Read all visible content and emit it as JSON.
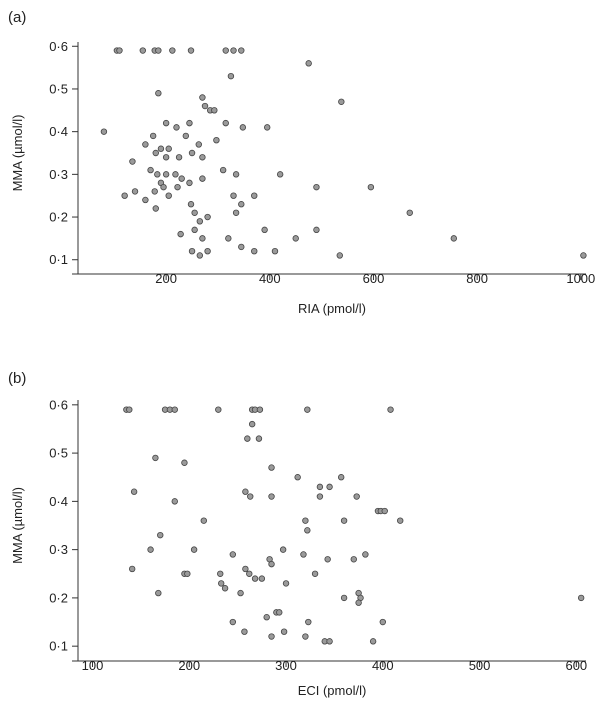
{
  "chart_data": [
    {
      "type": "scatter",
      "panel_label": "(a)",
      "xlabel": "RIA (pmol/l)",
      "ylabel": "MMA (µmol/l)",
      "xlim": [
        30,
        1010
      ],
      "ylim": [
        0.09,
        0.61
      ],
      "xticks": [
        200,
        400,
        600,
        800,
        1000
      ],
      "xtick_labels": [
        "200",
        "400",
        "600",
        "800",
        "1000"
      ],
      "yticks": [
        0.1,
        0.2,
        0.3,
        0.4,
        0.5,
        0.6
      ],
      "ytick_labels": [
        "0·1",
        "0·2",
        "0·3",
        "0·4",
        "0·5",
        "0·6"
      ],
      "grid": false,
      "points": [
        [
          105,
          0.59
        ],
        [
          110,
          0.59
        ],
        [
          155,
          0.59
        ],
        [
          178,
          0.59
        ],
        [
          185,
          0.59
        ],
        [
          212,
          0.59
        ],
        [
          248,
          0.59
        ],
        [
          315,
          0.59
        ],
        [
          330,
          0.59
        ],
        [
          345,
          0.59
        ],
        [
          475,
          0.56
        ],
        [
          325,
          0.53
        ],
        [
          185,
          0.49
        ],
        [
          538,
          0.47
        ],
        [
          270,
          0.48
        ],
        [
          275,
          0.46
        ],
        [
          285,
          0.45
        ],
        [
          293,
          0.45
        ],
        [
          80,
          0.4
        ],
        [
          200,
          0.42
        ],
        [
          220,
          0.41
        ],
        [
          245,
          0.42
        ],
        [
          315,
          0.42
        ],
        [
          348,
          0.41
        ],
        [
          395,
          0.41
        ],
        [
          160,
          0.37
        ],
        [
          175,
          0.39
        ],
        [
          190,
          0.36
        ],
        [
          205,
          0.36
        ],
        [
          225,
          0.34
        ],
        [
          238,
          0.39
        ],
        [
          250,
          0.35
        ],
        [
          263,
          0.37
        ],
        [
          270,
          0.34
        ],
        [
          297,
          0.38
        ],
        [
          180,
          0.35
        ],
        [
          200,
          0.34
        ],
        [
          135,
          0.33
        ],
        [
          170,
          0.31
        ],
        [
          183,
          0.3
        ],
        [
          190,
          0.28
        ],
        [
          200,
          0.3
        ],
        [
          218,
          0.3
        ],
        [
          230,
          0.29
        ],
        [
          245,
          0.28
        ],
        [
          270,
          0.29
        ],
        [
          310,
          0.31
        ],
        [
          335,
          0.3
        ],
        [
          420,
          0.3
        ],
        [
          490,
          0.27
        ],
        [
          595,
          0.27
        ],
        [
          120,
          0.25
        ],
        [
          140,
          0.26
        ],
        [
          160,
          0.24
        ],
        [
          178,
          0.26
        ],
        [
          180,
          0.22
        ],
        [
          195,
          0.27
        ],
        [
          205,
          0.25
        ],
        [
          222,
          0.27
        ],
        [
          248,
          0.23
        ],
        [
          255,
          0.21
        ],
        [
          265,
          0.19
        ],
        [
          280,
          0.2
        ],
        [
          330,
          0.25
        ],
        [
          345,
          0.23
        ],
        [
          335,
          0.21
        ],
        [
          370,
          0.25
        ],
        [
          228,
          0.16
        ],
        [
          255,
          0.17
        ],
        [
          270,
          0.15
        ],
        [
          280,
          0.12
        ],
        [
          320,
          0.15
        ],
        [
          345,
          0.13
        ],
        [
          390,
          0.17
        ],
        [
          450,
          0.15
        ],
        [
          490,
          0.17
        ],
        [
          250,
          0.12
        ],
        [
          265,
          0.11
        ],
        [
          370,
          0.12
        ],
        [
          410,
          0.12
        ],
        [
          535,
          0.11
        ],
        [
          670,
          0.21
        ],
        [
          755,
          0.15
        ],
        [
          1005,
          0.11
        ]
      ]
    },
    {
      "type": "scatter",
      "panel_label": "(b)",
      "xlabel": "ECI (pmol/l)",
      "ylabel": "MMA (µmol/l)",
      "xlim": [
        85,
        610
      ],
      "ylim": [
        0.09,
        0.61
      ],
      "xticks": [
        100,
        200,
        300,
        400,
        500,
        600
      ],
      "xtick_labels": [
        "100",
        "200",
        "300",
        "400",
        "500",
        "600"
      ],
      "yticks": [
        0.1,
        0.2,
        0.3,
        0.4,
        0.5,
        0.6
      ],
      "ytick_labels": [
        "0·1",
        "0·2",
        "0·3",
        "0·4",
        "0·5",
        "0·6"
      ],
      "grid": false,
      "points": [
        [
          135,
          0.59
        ],
        [
          138,
          0.59
        ],
        [
          175,
          0.59
        ],
        [
          180,
          0.59
        ],
        [
          185,
          0.59
        ],
        [
          230,
          0.59
        ],
        [
          265,
          0.59
        ],
        [
          268,
          0.59
        ],
        [
          273,
          0.59
        ],
        [
          322,
          0.59
        ],
        [
          408,
          0.59
        ],
        [
          265,
          0.56
        ],
        [
          260,
          0.53
        ],
        [
          272,
          0.53
        ],
        [
          165,
          0.49
        ],
        [
          195,
          0.48
        ],
        [
          285,
          0.47
        ],
        [
          312,
          0.45
        ],
        [
          357,
          0.45
        ],
        [
          143,
          0.42
        ],
        [
          258,
          0.42
        ],
        [
          263,
          0.41
        ],
        [
          285,
          0.41
        ],
        [
          335,
          0.43
        ],
        [
          345,
          0.43
        ],
        [
          335,
          0.41
        ],
        [
          373,
          0.41
        ],
        [
          185,
          0.4
        ],
        [
          395,
          0.38
        ],
        [
          398,
          0.38
        ],
        [
          402,
          0.38
        ],
        [
          418,
          0.36
        ],
        [
          320,
          0.36
        ],
        [
          322,
          0.34
        ],
        [
          360,
          0.36
        ],
        [
          215,
          0.36
        ],
        [
          170,
          0.33
        ],
        [
          160,
          0.3
        ],
        [
          205,
          0.3
        ],
        [
          245,
          0.29
        ],
        [
          283,
          0.28
        ],
        [
          285,
          0.27
        ],
        [
          297,
          0.3
        ],
        [
          318,
          0.29
        ],
        [
          343,
          0.28
        ],
        [
          370,
          0.28
        ],
        [
          382,
          0.29
        ],
        [
          141,
          0.26
        ],
        [
          195,
          0.25
        ],
        [
          198,
          0.25
        ],
        [
          232,
          0.25
        ],
        [
          258,
          0.26
        ],
        [
          262,
          0.25
        ],
        [
          268,
          0.24
        ],
        [
          275,
          0.24
        ],
        [
          300,
          0.23
        ],
        [
          330,
          0.25
        ],
        [
          233,
          0.23
        ],
        [
          237,
          0.22
        ],
        [
          253,
          0.21
        ],
        [
          168,
          0.21
        ],
        [
          375,
          0.21
        ],
        [
          377,
          0.2
        ],
        [
          375,
          0.19
        ],
        [
          360,
          0.2
        ],
        [
          245,
          0.15
        ],
        [
          257,
          0.13
        ],
        [
          280,
          0.16
        ],
        [
          285,
          0.12
        ],
        [
          290,
          0.17
        ],
        [
          293,
          0.17
        ],
        [
          298,
          0.13
        ],
        [
          323,
          0.15
        ],
        [
          320,
          0.12
        ],
        [
          340,
          0.11
        ],
        [
          345,
          0.11
        ],
        [
          390,
          0.11
        ],
        [
          400,
          0.15
        ],
        [
          605,
          0.2
        ]
      ]
    }
  ]
}
